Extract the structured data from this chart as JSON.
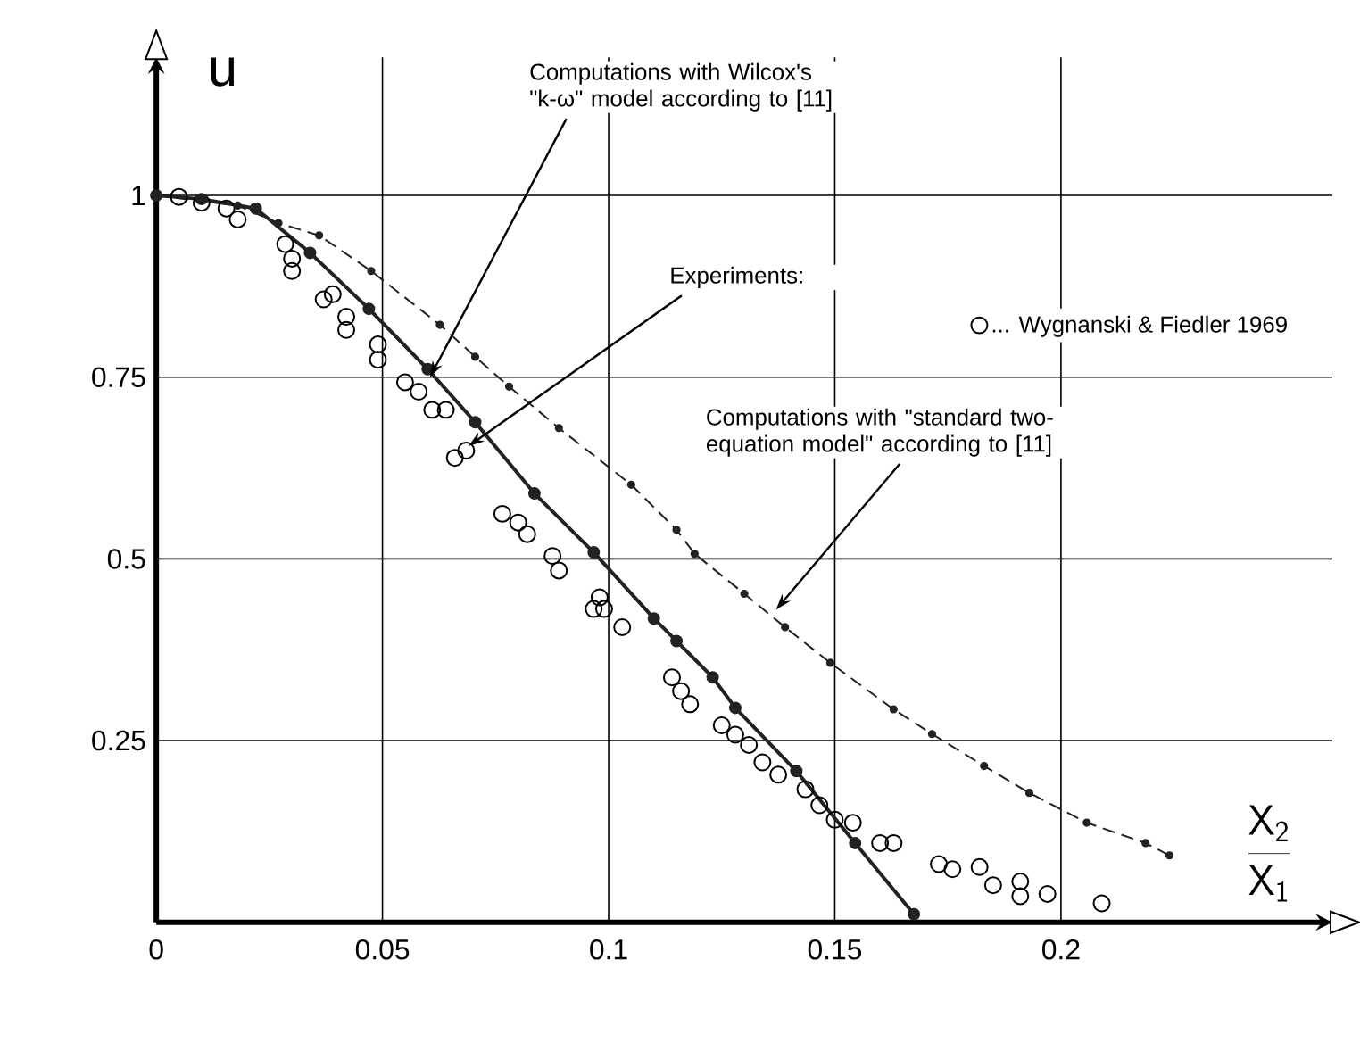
{
  "chart_data": {
    "type": "scatter",
    "xlabel": "\\frac{\\mathsf{X}_{\\mathsf{2}}}{\\mathsf{X}_{\\mathsf{1}}}",
    "ylabel": "u",
    "xlim": [
      0,
      0.26
    ],
    "ylim": [
      0,
      1.19
    ],
    "xticks": [
      0,
      0.05,
      0.1,
      0.15,
      0.2
    ],
    "yticks": [
      0.25,
      0.5,
      0.75,
      1
    ],
    "grid": true,
    "legend": "top right",
    "series": [
      {
        "name": "... Wygnanski & Fiedler 1969",
        "marker": "circle",
        "color": "#000000",
        "x": [
          0.005,
          0.01,
          0.0155,
          0.018,
          0.0285,
          0.03,
          0.03,
          0.037,
          0.039,
          0.042,
          0.042,
          0.049,
          0.049,
          0.055,
          0.058,
          0.061,
          0.064,
          0.066,
          0.0685,
          0.0765,
          0.08,
          0.082,
          0.0876,
          0.089,
          0.098,
          0.0967,
          0.099,
          0.103,
          0.114,
          0.116,
          0.118,
          0.125,
          0.128,
          0.131,
          0.134,
          0.1375,
          0.1435,
          0.1466,
          0.15,
          0.154,
          0.16,
          0.163,
          0.173,
          0.176,
          0.182,
          0.185,
          0.191,
          0.191,
          0.197,
          0.209
        ],
        "values": [
          0.998,
          0.99,
          0.982,
          0.967,
          0.933,
          0.913,
          0.896,
          0.857,
          0.864,
          0.833,
          0.815,
          0.795,
          0.774,
          0.743,
          0.73,
          0.705,
          0.705,
          0.639,
          0.649,
          0.562,
          0.55,
          0.534,
          0.504,
          0.484,
          0.447,
          0.431,
          0.431,
          0.406,
          0.337,
          0.318,
          0.3,
          0.271,
          0.258,
          0.244,
          0.22,
          0.203,
          0.183,
          0.161,
          0.141,
          0.137,
          0.109,
          0.109,
          0.08,
          0.073,
          0.076,
          0.051,
          0.056,
          0.036,
          0.039,
          0.026
        ]
      },
      {
        "type": "line",
        "marker": "circle",
        "line_style": "solid",
        "color": "#222222",
        "x": [
          0,
          0.01,
          0.022,
          0.034,
          0.047,
          0.06,
          0.0705,
          0.0836,
          0.0967,
          0.11,
          0.115,
          0.123,
          0.128,
          0.1415,
          0.1545,
          0.1675
        ],
        "values": [
          1.0,
          0.995,
          0.982,
          0.921,
          0.844,
          0.761,
          0.688,
          0.59,
          0.509,
          0.418,
          0.387,
          0.337,
          0.295,
          0.208,
          0.109,
          0.011
        ]
      },
      {
        "type": "line",
        "marker": "circle",
        "line_style": "dashed",
        "color": "#222222",
        "x": [
          0,
          0.018,
          0.027,
          0.036,
          0.0475,
          0.0627,
          0.0705,
          0.078,
          0.089,
          0.105,
          0.115,
          0.119,
          0.13,
          0.139,
          0.149,
          0.163,
          0.1715,
          0.183,
          0.193,
          0.2057,
          0.2187,
          0.224
        ],
        "values": [
          1.0,
          0.986,
          0.962,
          0.945,
          0.896,
          0.822,
          0.778,
          0.737,
          0.68,
          0.602,
          0.54,
          0.507,
          0.452,
          0.406,
          0.357,
          0.293,
          0.259,
          0.215,
          0.178,
          0.137,
          0.109,
          0.092
        ]
      }
    ],
    "annotations": [
      {
        "text": "Computations with Wilcox's \"k-ω\" model according to [11]",
        "x": 0.0605,
        "y": 0.75
      },
      {
        "text": "Experiments:",
        "x": 0.069,
        "y": 0.655
      },
      {
        "text": "Computations with \"standard two-equation model\" according to [11]",
        "x": 0.137,
        "y": 0.43
      }
    ]
  }
}
